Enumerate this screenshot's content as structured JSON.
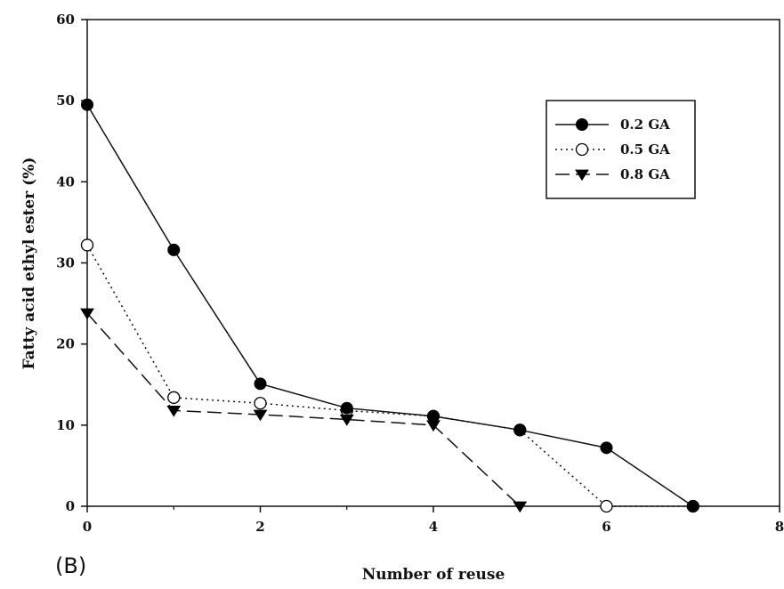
{
  "panel_label": "(B)",
  "chart_data": {
    "type": "line",
    "xlabel": "Number of reuse",
    "ylabel": "Fatty acid ethyl ester (%)",
    "xlim": [
      0,
      8
    ],
    "ylim": [
      0,
      60
    ],
    "xticks": [
      "0",
      "2",
      "4",
      "6",
      "8"
    ],
    "yticks": [
      "0",
      "10",
      "20",
      "30",
      "40",
      "50",
      "60"
    ],
    "grid": false,
    "legend_position": "top-right",
    "series": [
      {
        "name": "0.2 GA",
        "marker": "filled-circle",
        "line_style": "solid",
        "x": [
          0,
          1,
          2,
          3,
          4,
          5,
          6,
          7
        ],
        "y": [
          49.5,
          31.6,
          15.1,
          12.1,
          11.1,
          9.4,
          7.2,
          0
        ]
      },
      {
        "name": "0.5 GA",
        "marker": "open-circle",
        "line_style": "dotted",
        "x": [
          0,
          1,
          2,
          3,
          4,
          5,
          6,
          7
        ],
        "y": [
          32.2,
          13.4,
          12.7,
          11.8,
          11.1,
          9.4,
          0,
          0
        ]
      },
      {
        "name": "0.8 GA",
        "marker": "filled-triangle-down",
        "line_style": "dashed",
        "x": [
          0,
          1,
          2,
          3,
          4,
          5
        ],
        "y": [
          23.8,
          11.8,
          11.3,
          10.7,
          10.0,
          0
        ]
      }
    ]
  }
}
